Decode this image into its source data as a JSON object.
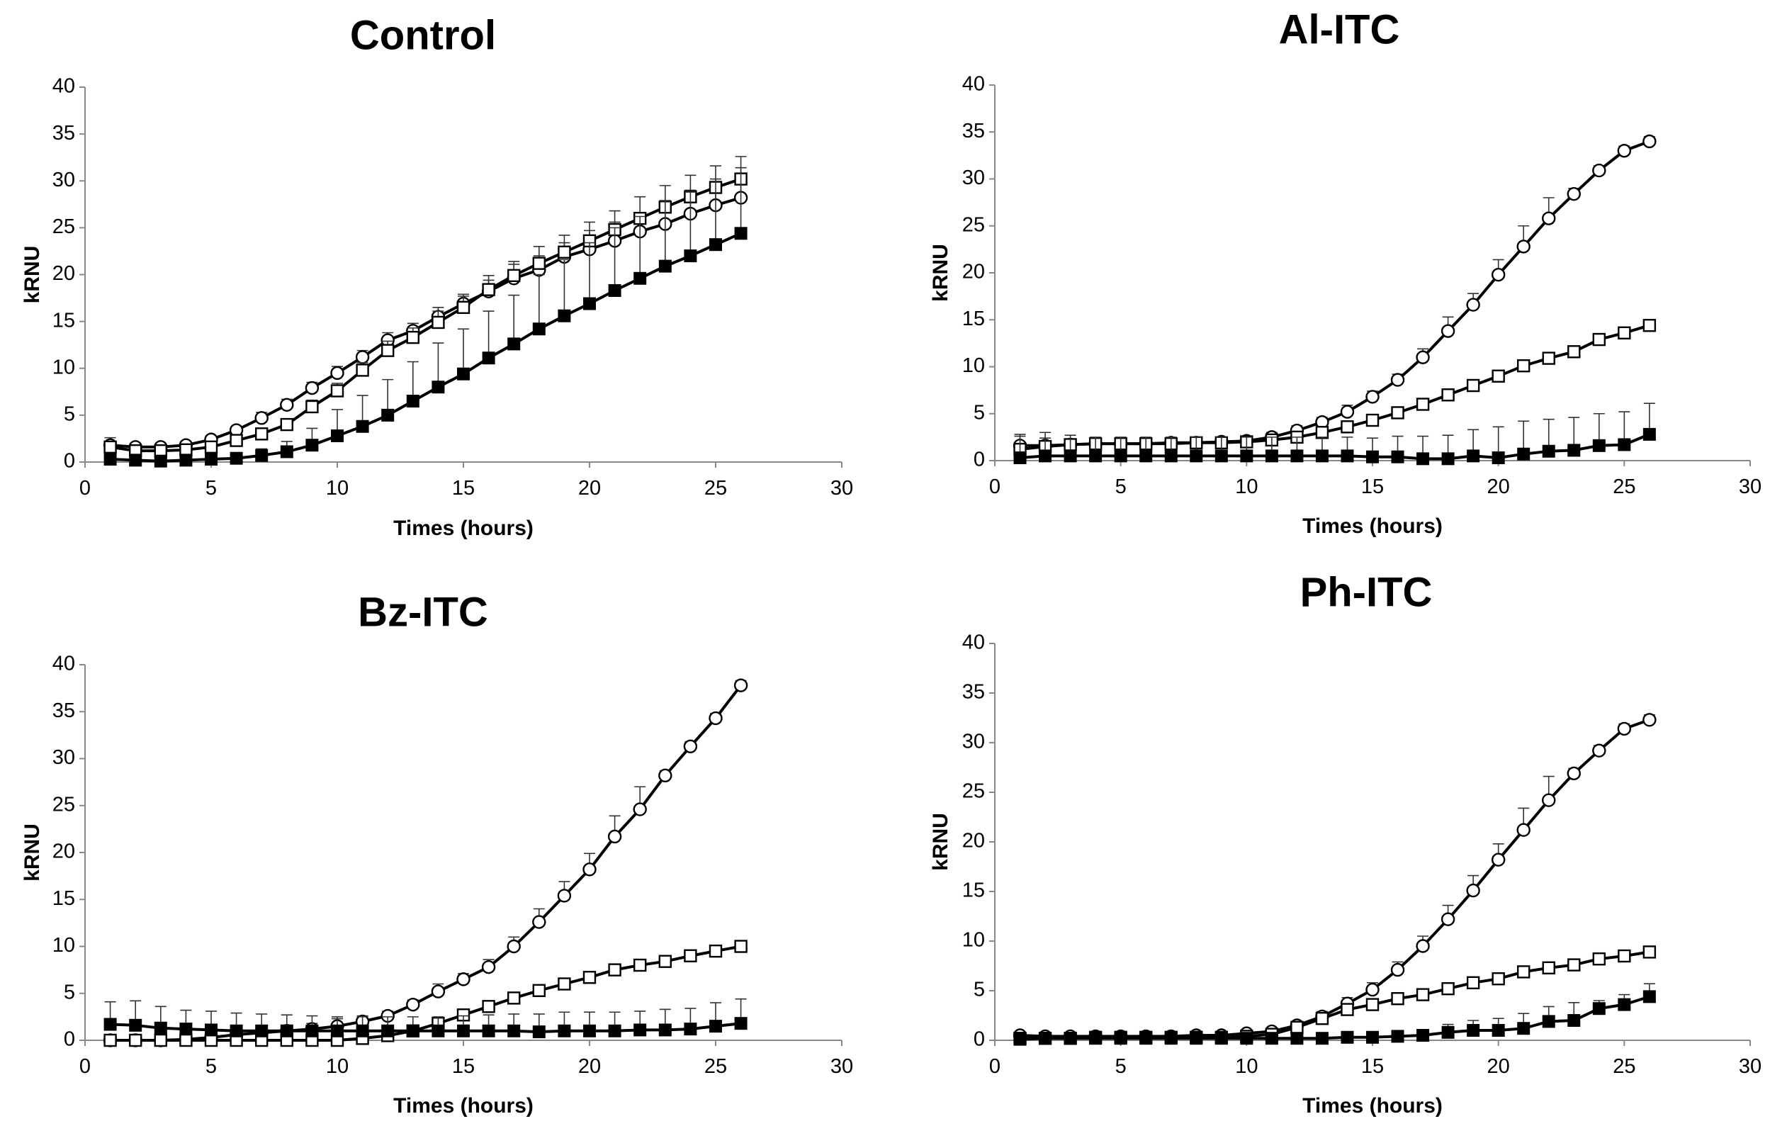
{
  "figure": {
    "panel_count": 4
  },
  "chart_data": [
    {
      "type": "line",
      "title": "Control",
      "xlabel": "Times (hours)",
      "ylabel": "kRNU",
      "xlim": [
        0,
        30
      ],
      "ylim": [
        0,
        40
      ],
      "xticks": [
        0,
        5,
        10,
        15,
        20,
        25,
        30
      ],
      "yticks": [
        0,
        5,
        10,
        15,
        20,
        25,
        30,
        35,
        40
      ],
      "grid": false,
      "x": [
        1,
        2,
        3,
        4,
        5,
        6,
        7,
        8,
        9,
        10,
        11,
        12,
        13,
        14,
        15,
        16,
        17,
        18,
        19,
        20,
        21,
        22,
        23,
        24,
        25,
        26
      ],
      "series": [
        {
          "name": "open-circle",
          "marker": "circle-open",
          "values": [
            1.8,
            1.6,
            1.6,
            1.8,
            2.4,
            3.4,
            4.7,
            6.1,
            7.9,
            9.5,
            11.2,
            13.0,
            14.0,
            15.5,
            16.9,
            18.2,
            19.6,
            20.5,
            21.9,
            22.7,
            23.6,
            24.6,
            25.4,
            26.5,
            27.4,
            28.2
          ],
          "errors": [
            0.8,
            0.4,
            0.4,
            0.4,
            0.4,
            0.4,
            0.6,
            0.6,
            0.6,
            0.7,
            0.7,
            0.8,
            0.8,
            1.0,
            1.0,
            1.2,
            1.5,
            1.5,
            1.5,
            2.0,
            2.0,
            2.0,
            2.5,
            2.5,
            2.5,
            2.5
          ]
        },
        {
          "name": "open-square",
          "marker": "square-open",
          "values": [
            1.6,
            1.2,
            1.2,
            1.3,
            1.6,
            2.3,
            3.0,
            4.0,
            5.9,
            7.6,
            9.8,
            11.9,
            13.3,
            14.9,
            16.5,
            18.4,
            19.9,
            21.2,
            22.4,
            23.6,
            24.8,
            26.0,
            27.2,
            28.3,
            29.3,
            30.2
          ],
          "errors": [
            0.4,
            0.3,
            0.3,
            0.3,
            0.3,
            0.4,
            0.5,
            0.6,
            0.7,
            0.8,
            0.8,
            1.0,
            1.0,
            1.2,
            1.2,
            1.5,
            1.5,
            1.8,
            1.8,
            2.0,
            2.0,
            2.3,
            2.3,
            2.3,
            2.3,
            2.4
          ]
        },
        {
          "name": "filled-square",
          "marker": "square-filled",
          "values": [
            0.3,
            0.2,
            0.1,
            0.2,
            0.3,
            0.4,
            0.7,
            1.1,
            1.8,
            2.8,
            3.8,
            5.0,
            6.5,
            8.0,
            9.4,
            11.1,
            12.6,
            14.2,
            15.6,
            16.9,
            18.3,
            19.6,
            20.9,
            22.0,
            23.2,
            24.4
          ],
          "errors": [
            0.4,
            0.3,
            0.3,
            0.3,
            0.3,
            0.4,
            0.7,
            1.1,
            1.8,
            2.8,
            3.3,
            3.8,
            4.2,
            4.7,
            4.8,
            5.0,
            5.2,
            5.8,
            6.0,
            6.5,
            6.7,
            6.6,
            7.0,
            6.8,
            7.0,
            7.0
          ]
        }
      ]
    },
    {
      "type": "line",
      "title": "Al-ITC",
      "xlabel": "Times (hours)",
      "ylabel": "kRNU",
      "xlim": [
        0,
        30
      ],
      "ylim": [
        0,
        40
      ],
      "xticks": [
        0,
        5,
        10,
        15,
        20,
        25,
        30
      ],
      "yticks": [
        0,
        5,
        10,
        15,
        20,
        25,
        30,
        35,
        40
      ],
      "grid": false,
      "x": [
        1,
        2,
        3,
        4,
        5,
        6,
        7,
        8,
        9,
        10,
        11,
        12,
        13,
        14,
        15,
        16,
        17,
        18,
        19,
        20,
        21,
        22,
        23,
        24,
        25,
        26
      ],
      "series": [
        {
          "name": "open-circle",
          "marker": "circle-open",
          "values": [
            1.6,
            1.6,
            1.7,
            1.8,
            1.8,
            1.8,
            1.9,
            1.9,
            2.0,
            2.1,
            2.5,
            3.2,
            4.1,
            5.2,
            6.8,
            8.6,
            11.0,
            13.8,
            16.6,
            19.8,
            22.8,
            25.8,
            28.4,
            30.9,
            33.0,
            34.0
          ],
          "errors": [
            1.0,
            0.8,
            0.6,
            0.5,
            0.5,
            0.5,
            0.5,
            0.5,
            0.5,
            0.5,
            0.5,
            0.5,
            0.5,
            0.7,
            0.6,
            0.6,
            0.9,
            1.5,
            1.2,
            1.6,
            2.2,
            2.2,
            0.6,
            0.5,
            0.5,
            0.5
          ]
        },
        {
          "name": "open-square",
          "marker": "square-open",
          "values": [
            1.2,
            1.5,
            1.7,
            1.8,
            1.8,
            1.8,
            1.8,
            1.9,
            1.9,
            2.0,
            2.2,
            2.5,
            3.0,
            3.6,
            4.3,
            5.1,
            6.0,
            7.0,
            8.0,
            9.0,
            10.1,
            10.9,
            11.6,
            12.9,
            13.6,
            14.4
          ],
          "errors": [
            0.5,
            0.5,
            0.5,
            0.5,
            0.5,
            0.5,
            0.5,
            0.5,
            0.5,
            0.5,
            0.5,
            0.5,
            0.5,
            0.5,
            0.5,
            0.5,
            0.5,
            0.5,
            0.5,
            0.5,
            0.5,
            0.5,
            0.5,
            0.5,
            0.5,
            0.5
          ]
        },
        {
          "name": "filled-square",
          "marker": "square-filled",
          "values": [
            0.3,
            0.5,
            0.5,
            0.5,
            0.5,
            0.5,
            0.5,
            0.5,
            0.5,
            0.5,
            0.5,
            0.5,
            0.5,
            0.5,
            0.4,
            0.4,
            0.2,
            0.2,
            0.5,
            0.3,
            0.7,
            1.0,
            1.1,
            1.6,
            1.7,
            2.8
          ],
          "errors": [
            2.5,
            2.5,
            2.2,
            2.0,
            2.0,
            2.0,
            2.0,
            2.0,
            2.0,
            2.0,
            2.0,
            2.0,
            2.0,
            2.0,
            2.0,
            2.2,
            2.4,
            2.5,
            2.8,
            3.3,
            3.5,
            3.4,
            3.5,
            3.4,
            3.5,
            3.3
          ]
        }
      ]
    },
    {
      "type": "line",
      "title": "Bz-ITC",
      "xlabel": "Times (hours)",
      "ylabel": "kRNU",
      "xlim": [
        0,
        30
      ],
      "ylim": [
        0,
        40
      ],
      "xticks": [
        0,
        5,
        10,
        15,
        20,
        25,
        30
      ],
      "yticks": [
        0,
        5,
        10,
        15,
        20,
        25,
        30,
        35,
        40
      ],
      "grid": false,
      "x": [
        1,
        2,
        3,
        4,
        5,
        6,
        7,
        8,
        9,
        10,
        11,
        12,
        13,
        14,
        15,
        16,
        17,
        18,
        19,
        20,
        21,
        22,
        23,
        24,
        25,
        26
      ],
      "series": [
        {
          "name": "open-circle",
          "marker": "circle-open",
          "values": [
            0.0,
            0.0,
            0.0,
            0.1,
            0.3,
            0.6,
            0.8,
            1.0,
            1.2,
            1.5,
            2.0,
            2.6,
            3.8,
            5.2,
            6.5,
            7.8,
            10.0,
            12.6,
            15.4,
            18.2,
            21.7,
            24.6,
            28.2,
            31.3,
            34.3,
            37.8
          ],
          "errors": [
            0.3,
            0.3,
            0.3,
            0.3,
            0.3,
            0.3,
            0.3,
            0.5,
            0.6,
            0.8,
            0.6,
            0.5,
            0.5,
            0.8,
            0.6,
            0.8,
            1.0,
            1.4,
            1.5,
            1.7,
            2.2,
            2.4,
            0.5,
            0.5,
            0.5,
            0.5
          ]
        },
        {
          "name": "open-square",
          "marker": "square-open",
          "values": [
            0.0,
            0.0,
            0.0,
            0.0,
            0.0,
            0.0,
            0.0,
            0.0,
            0.0,
            0.0,
            0.2,
            0.5,
            1.0,
            1.8,
            2.7,
            3.6,
            4.5,
            5.3,
            6.0,
            6.7,
            7.5,
            8.0,
            8.4,
            9.0,
            9.5,
            10.0
          ],
          "errors": [
            0.3,
            0.3,
            0.3,
            0.3,
            0.3,
            0.3,
            0.3,
            0.3,
            0.3,
            0.3,
            0.3,
            0.3,
            0.3,
            0.3,
            0.3,
            0.3,
            0.3,
            0.3,
            0.3,
            0.3,
            0.3,
            0.3,
            0.3,
            0.3,
            0.3,
            0.3
          ]
        },
        {
          "name": "filled-square",
          "marker": "square-filled",
          "values": [
            1.7,
            1.6,
            1.3,
            1.2,
            1.1,
            1.0,
            1.0,
            1.0,
            1.0,
            1.0,
            1.0,
            1.0,
            1.0,
            1.0,
            1.0,
            1.0,
            1.0,
            0.9,
            1.0,
            1.0,
            1.0,
            1.1,
            1.1,
            1.2,
            1.5,
            1.8
          ],
          "errors": [
            2.4,
            2.6,
            2.3,
            2.0,
            2.0,
            1.9,
            1.8,
            1.7,
            1.6,
            1.5,
            1.5,
            1.5,
            1.5,
            1.5,
            1.6,
            1.7,
            1.8,
            1.9,
            2.0,
            2.0,
            2.0,
            2.0,
            2.2,
            2.2,
            2.5,
            2.6
          ]
        }
      ]
    },
    {
      "type": "line",
      "title": "Ph-ITC",
      "xlabel": "Times (hours)",
      "ylabel": "kRNU",
      "xlim": [
        0,
        30
      ],
      "ylim": [
        0,
        40
      ],
      "xticks": [
        0,
        5,
        10,
        15,
        20,
        25,
        30
      ],
      "yticks": [
        0,
        5,
        10,
        15,
        20,
        25,
        30,
        35,
        40
      ],
      "grid": false,
      "x": [
        1,
        2,
        3,
        4,
        5,
        6,
        7,
        8,
        9,
        10,
        11,
        12,
        13,
        14,
        15,
        16,
        17,
        18,
        19,
        20,
        21,
        22,
        23,
        24,
        25,
        26
      ],
      "series": [
        {
          "name": "open-circle",
          "marker": "circle-open",
          "values": [
            0.5,
            0.4,
            0.4,
            0.4,
            0.4,
            0.4,
            0.4,
            0.5,
            0.5,
            0.7,
            0.9,
            1.5,
            2.4,
            3.7,
            5.1,
            7.1,
            9.5,
            12.2,
            15.1,
            18.2,
            21.2,
            24.2,
            26.9,
            29.2,
            31.4,
            32.3
          ],
          "errors": [
            0.3,
            0.3,
            0.3,
            0.3,
            0.3,
            0.3,
            0.3,
            0.3,
            0.3,
            0.3,
            0.3,
            0.4,
            0.5,
            0.6,
            0.7,
            0.8,
            1.0,
            1.4,
            1.5,
            1.6,
            2.2,
            2.4,
            0.5,
            0.5,
            0.5,
            0.5
          ]
        },
        {
          "name": "open-square",
          "marker": "square-open",
          "values": [
            0.2,
            0.2,
            0.2,
            0.3,
            0.3,
            0.3,
            0.3,
            0.3,
            0.3,
            0.4,
            0.6,
            1.3,
            2.2,
            3.1,
            3.6,
            4.2,
            4.6,
            5.2,
            5.8,
            6.2,
            6.9,
            7.3,
            7.6,
            8.2,
            8.5,
            8.9
          ],
          "errors": [
            0.3,
            0.3,
            0.3,
            0.3,
            0.3,
            0.3,
            0.3,
            0.3,
            0.3,
            0.3,
            0.3,
            0.3,
            0.3,
            0.3,
            0.3,
            0.3,
            0.3,
            0.3,
            0.3,
            0.3,
            0.3,
            0.3,
            0.3,
            0.3,
            0.3,
            0.3
          ]
        },
        {
          "name": "filled-square",
          "marker": "square-filled",
          "values": [
            0.1,
            0.2,
            0.2,
            0.2,
            0.2,
            0.2,
            0.2,
            0.2,
            0.2,
            0.2,
            0.2,
            0.2,
            0.2,
            0.3,
            0.3,
            0.4,
            0.5,
            0.8,
            1.0,
            1.0,
            1.2,
            1.9,
            2.0,
            3.2,
            3.6,
            4.4
          ],
          "errors": [
            0.3,
            0.3,
            0.3,
            0.3,
            0.3,
            0.3,
            0.3,
            0.3,
            0.3,
            0.3,
            0.3,
            0.3,
            0.3,
            0.3,
            0.3,
            0.4,
            0.5,
            0.8,
            1.0,
            1.2,
            1.5,
            1.5,
            1.8,
            0.8,
            1.0,
            1.3
          ]
        }
      ]
    }
  ]
}
